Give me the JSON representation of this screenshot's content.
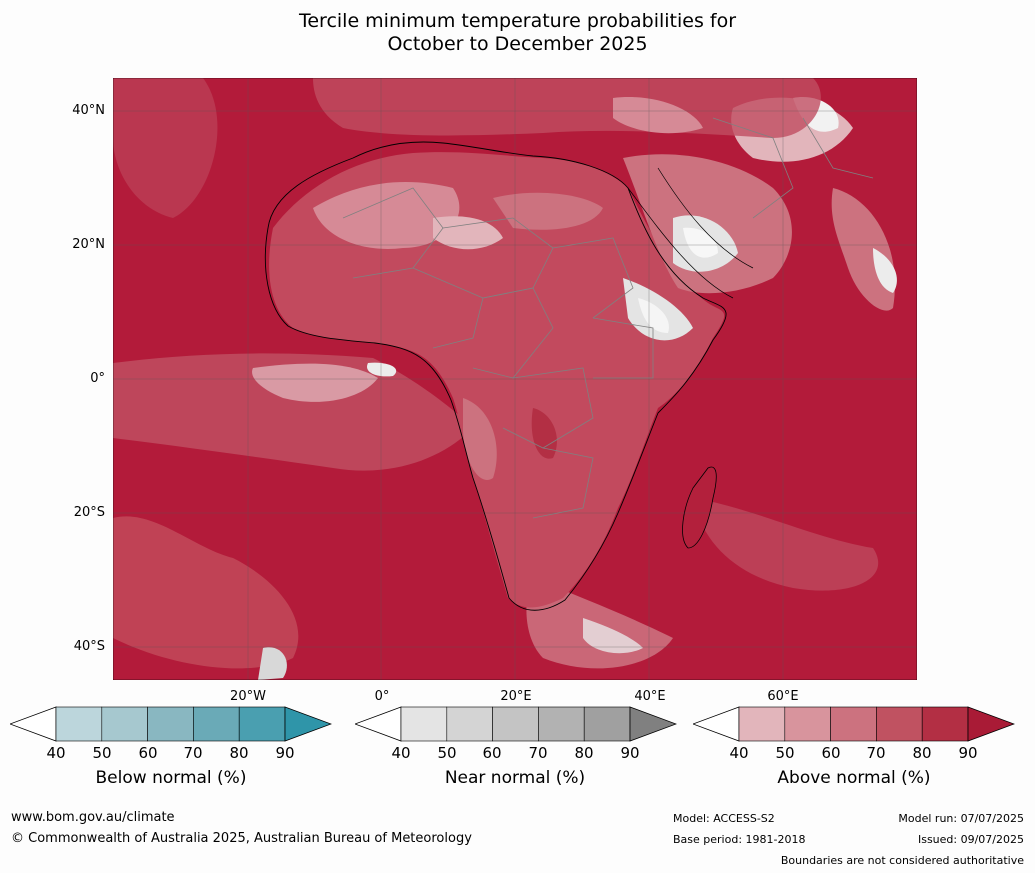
{
  "title_line1": "Tercile minimum temperature probabilities for",
  "title_line2": "October to December 2025",
  "lat_labels": [
    "40°N",
    "20°N",
    "0°",
    "20°S",
    "40°S"
  ],
  "lon_labels": [
    "20°W",
    "0°",
    "20°E",
    "40°E",
    "60°E"
  ],
  "colorbars": [
    {
      "label": "Below normal (%)",
      "ticks": [
        "40",
        "50",
        "60",
        "70",
        "80",
        "90"
      ],
      "colors": [
        "#bcd6dc",
        "#a6c8cf",
        "#89b7c1",
        "#6aaab7",
        "#4a9fb0"
      ],
      "extend_color": "#2f95a9"
    },
    {
      "label": "Near normal (%)",
      "ticks": [
        "40",
        "50",
        "60",
        "70",
        "80",
        "90"
      ],
      "colors": [
        "#e4e4e4",
        "#d4d4d4",
        "#c4c4c4",
        "#b2b2b2",
        "#a0a0a0"
      ],
      "extend_color": "#808080"
    },
    {
      "label": "Above normal (%)",
      "ticks": [
        "40",
        "50",
        "60",
        "70",
        "80",
        "90"
      ],
      "colors": [
        "#e2b5bb",
        "#d8949d",
        "#cc727f",
        "#c05261",
        "#b32f44"
      ],
      "extend_color": "#a91b36"
    }
  ],
  "footer": {
    "url": "www.bom.gov.au/climate",
    "copyright": "© Commonwealth of Australia 2025, Australian Bureau of Meteorology",
    "model": "Model: ACCESS-S2",
    "base_period": "Base period: 1981-2018",
    "model_run": "Model run: 07/07/2025",
    "issued": "Issued: 09/07/2025",
    "disclaimer": "Boundaries are not considered authoritative"
  }
}
